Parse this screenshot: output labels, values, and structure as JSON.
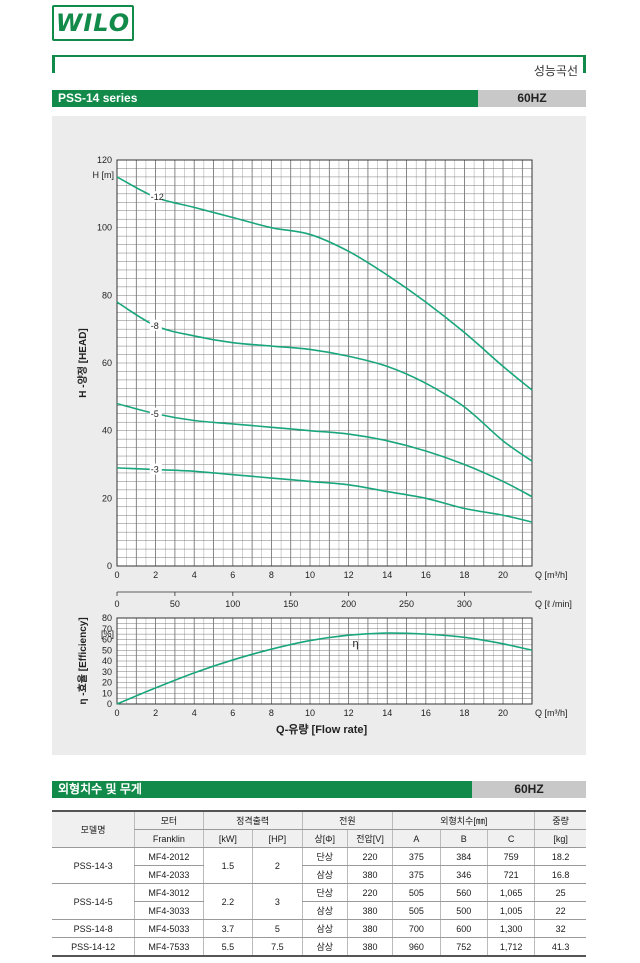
{
  "logo_text": "WILO",
  "section_label": "성능곡선",
  "chart_bar": {
    "title": "PSS-14 series",
    "freq": "60HZ"
  },
  "table_bar": {
    "title": "외형치수 및 무게",
    "freq": "60HZ"
  },
  "chart_data": [
    {
      "type": "line",
      "ylabel": "H -양정 [HEAD]",
      "y_unit": "H [m]",
      "xlabel": "Q [m³/h]",
      "xlim": [
        0,
        21.5
      ],
      "ylim": [
        0,
        120
      ],
      "x_ticks": [
        0,
        2,
        4,
        6,
        8,
        10,
        12,
        14,
        16,
        18,
        20
      ],
      "y_ticks": [
        0,
        20,
        40,
        60,
        80,
        100,
        120
      ],
      "grid": true,
      "series": [
        {
          "name": "12",
          "x": [
            0,
            2,
            4,
            6,
            8,
            10,
            12,
            14,
            16,
            18,
            20,
            21.5
          ],
          "y": [
            115,
            109,
            106,
            103,
            100,
            98,
            93,
            86,
            78,
            69,
            59,
            52
          ]
        },
        {
          "name": "8",
          "x": [
            0,
            2,
            4,
            6,
            8,
            10,
            12,
            14,
            16,
            18,
            20,
            21.5
          ],
          "y": [
            78,
            71,
            68,
            66,
            65,
            64,
            62,
            59,
            54,
            47,
            37,
            31
          ]
        },
        {
          "name": "5",
          "x": [
            0,
            2,
            4,
            6,
            8,
            10,
            12,
            14,
            16,
            18,
            20,
            21.5
          ],
          "y": [
            48,
            45,
            43,
            42,
            41,
            40,
            39,
            37,
            34,
            30,
            25,
            20.5
          ]
        },
        {
          "name": "3",
          "x": [
            0,
            2,
            4,
            6,
            8,
            10,
            12,
            14,
            16,
            18,
            20,
            21.5
          ],
          "y": [
            29,
            28.5,
            28,
            27,
            26,
            25,
            24,
            22,
            20,
            17,
            15,
            13
          ]
        }
      ],
      "secondary_x": {
        "label": "Q [ℓ /min]",
        "ticks": [
          0,
          50,
          100,
          150,
          200,
          250,
          300
        ]
      }
    },
    {
      "type": "line",
      "ylabel": "η -효율 [Efficiency]",
      "y_unit": "[%]",
      "xlabel": "Q-유량 [Flow rate]",
      "x_unit": "Q [m³/h]",
      "xlim": [
        0,
        21.5
      ],
      "ylim": [
        0,
        80
      ],
      "x_ticks": [
        0,
        2,
        4,
        6,
        8,
        10,
        12,
        14,
        16,
        18,
        20
      ],
      "y_ticks": [
        0,
        10,
        20,
        30,
        40,
        50,
        60,
        70,
        80
      ],
      "grid": true,
      "series": [
        {
          "name": "η",
          "x": [
            0,
            2,
            4,
            6,
            8,
            10,
            12,
            14,
            16,
            18,
            20,
            21.5
          ],
          "y": [
            0,
            15,
            29,
            41,
            51,
            59,
            64,
            66,
            65,
            62,
            56,
            50
          ]
        }
      ]
    }
  ],
  "table": {
    "header1": [
      "모델명",
      "모터",
      "정격출력",
      "전원",
      "외형치수[㎜]",
      "중량"
    ],
    "header2": [
      "Franklin",
      "[kW]",
      "[HP]",
      "상[Φ]",
      "전압[V]",
      "A",
      "B",
      "C",
      "[kg]"
    ],
    "rows": [
      {
        "model": "PSS-14-3",
        "kw": "1.5",
        "hp": "2",
        "subs": [
          {
            "motor": "MF4-2012",
            "phase": "단상",
            "volt": "220",
            "a": "375",
            "b": "384",
            "c": "759",
            "kg": "18.2"
          },
          {
            "motor": "MF4-2033",
            "phase": "삼상",
            "volt": "380",
            "a": "375",
            "b": "346",
            "c": "721",
            "kg": "16.8"
          }
        ]
      },
      {
        "model": "PSS-14-5",
        "kw": "2.2",
        "hp": "3",
        "subs": [
          {
            "motor": "MF4-3012",
            "phase": "단상",
            "volt": "220",
            "a": "505",
            "b": "560",
            "c": "1,065",
            "kg": "25"
          },
          {
            "motor": "MF4-3033",
            "phase": "삼상",
            "volt": "380",
            "a": "505",
            "b": "500",
            "c": "1,005",
            "kg": "22"
          }
        ]
      },
      {
        "model": "PSS-14-8",
        "kw": "3.7",
        "hp": "5",
        "subs": [
          {
            "motor": "MF4-5033",
            "phase": "삼상",
            "volt": "380",
            "a": "700",
            "b": "600",
            "c": "1,300",
            "kg": "32"
          }
        ]
      },
      {
        "model": "PSS-14-12",
        "kw": "5.5",
        "hp": "7.5",
        "subs": [
          {
            "motor": "MF4-7533",
            "phase": "삼상",
            "volt": "380",
            "a": "960",
            "b": "752",
            "c": "1,712",
            "kg": "41.3"
          }
        ]
      }
    ]
  },
  "colors": {
    "brand_green": "#118a4a",
    "curve_teal": "#1aa67c",
    "bar_gray": "#c8c8c8"
  }
}
